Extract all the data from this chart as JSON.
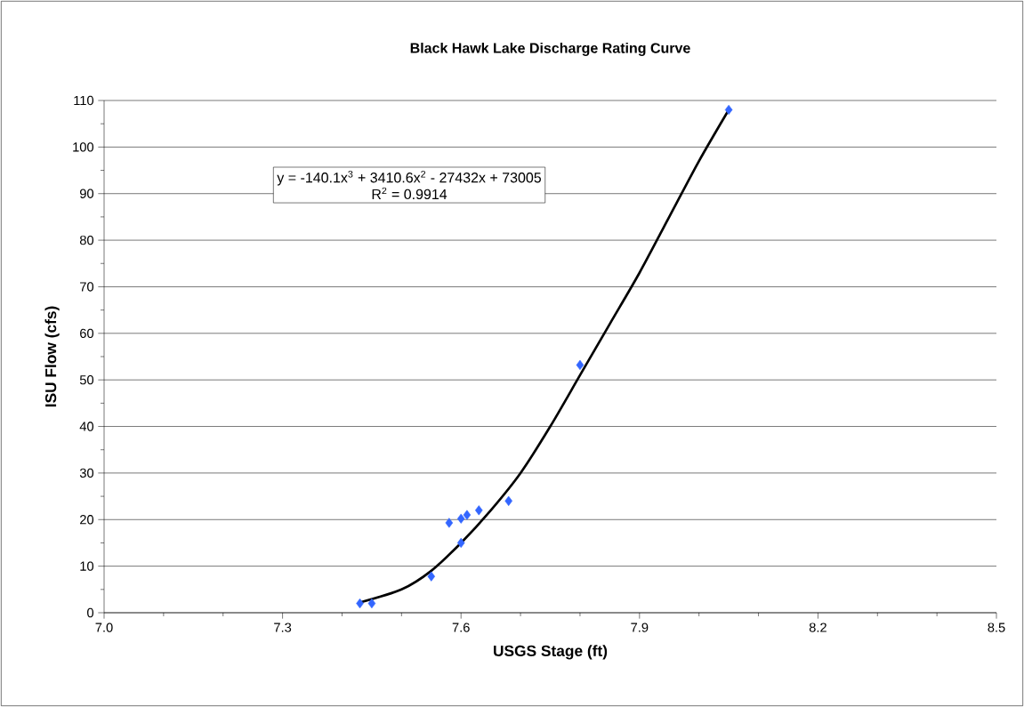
{
  "chart_data": {
    "type": "scatter",
    "title": "Black Hawk Lake Discharge Rating Curve",
    "xlabel": "USGS Stage (ft)",
    "ylabel": "ISU Flow (cfs)",
    "xlim": [
      7.0,
      8.5
    ],
    "xticks": [
      {
        "value": 7.0,
        "label": "7.0"
      },
      {
        "value": 7.1,
        "label": null
      },
      {
        "value": 7.2,
        "label": null
      },
      {
        "value": 7.3,
        "label": "7.3"
      },
      {
        "value": 7.4,
        "label": null
      },
      {
        "value": 7.5,
        "label": null
      },
      {
        "value": 7.6,
        "label": "7.6"
      },
      {
        "value": 7.7,
        "label": null
      },
      {
        "value": 7.8,
        "label": null
      },
      {
        "value": 7.9,
        "label": "7.9"
      },
      {
        "value": 8.0,
        "label": null
      },
      {
        "value": 8.1,
        "label": null
      },
      {
        "value": 8.2,
        "label": "8.2"
      },
      {
        "value": 8.3,
        "label": null
      },
      {
        "value": 8.4,
        "label": null
      },
      {
        "value": 8.5,
        "label": "8.5"
      }
    ],
    "ylim": [
      0,
      110
    ],
    "yticks": [
      0,
      {
        "value": 5,
        "label": null
      },
      10,
      {
        "value": 15,
        "label": null
      },
      20,
      {
        "value": 25,
        "label": null
      },
      30,
      {
        "value": 35,
        "label": null
      },
      40,
      {
        "value": 45,
        "label": null
      },
      50,
      {
        "value": 55,
        "label": null
      },
      60,
      {
        "value": 65,
        "label": null
      },
      70,
      {
        "value": 75,
        "label": null
      },
      80,
      {
        "value": 85,
        "label": null
      },
      90,
      {
        "value": 95,
        "label": null
      },
      100,
      {
        "value": 105,
        "label": null
      },
      110
    ],
    "grid": "y",
    "series": [
      {
        "color": "#3366ff",
        "marker": "diamond",
        "x": [
          7.43,
          7.45,
          7.55,
          7.58,
          7.6,
          7.6,
          7.61,
          7.63,
          7.68,
          7.8,
          8.05
        ],
        "values": [
          2.0,
          2.0,
          7.8,
          19.3,
          20.2,
          15.0,
          21.0,
          22.0,
          24.0,
          53.2,
          108
        ]
      },
      {
        "type": "line",
        "color": "#000000",
        "marker": "none",
        "line_style": "solid",
        "x": [
          7.43,
          7.5,
          7.55,
          7.6,
          7.65,
          7.7,
          7.75,
          7.8,
          7.85,
          7.9,
          7.95,
          8.0,
          8.05
        ],
        "values": [
          2.2,
          5,
          9,
          15,
          22,
          30,
          40,
          51,
          62,
          73,
          85,
          97,
          108
        ]
      }
    ],
    "annotations": [
      "y = -140.1x$^{3}$ + 3410.6x$^{2}$ - 27432x + 73005",
      "R$^{2}$ = 0.9914"
    ]
  }
}
